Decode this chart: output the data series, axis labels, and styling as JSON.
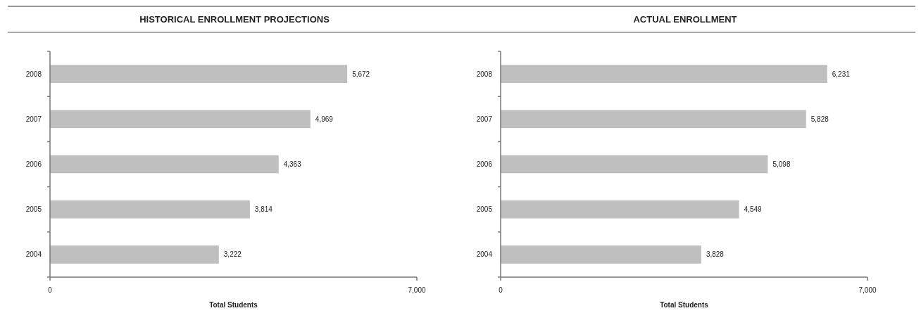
{
  "chart_data": [
    {
      "type": "bar",
      "orientation": "horizontal",
      "title": "HISTORICAL ENROLLMENT PROJECTIONS",
      "xlabel": "Total Students",
      "categories": [
        "2008",
        "2007",
        "2006",
        "2005",
        "2004"
      ],
      "values": [
        5672,
        4969,
        4363,
        3814,
        3222
      ],
      "color": "#bfbfbf",
      "xlim": [
        0,
        7000
      ],
      "xticks": [
        0,
        {
          "value": 7000,
          "label": "7,000"
        }
      ],
      "value_labels": [
        "5,672",
        "4,969",
        "4,363",
        "3,814",
        "3,222"
      ]
    },
    {
      "type": "bar",
      "orientation": "horizontal",
      "title": "ACTUAL ENROLLMENT",
      "xlabel": "Total Students",
      "categories": [
        "2008",
        "2007",
        "2006",
        "2005",
        "2004"
      ],
      "values": [
        6231,
        5828,
        5098,
        4549,
        3828
      ],
      "color": "#bfbfbf",
      "xlim": [
        0,
        7000
      ],
      "xticks": [
        0,
        {
          "value": 7000,
          "label": "7,000"
        }
      ],
      "value_labels": [
        "6,231",
        "5,828",
        "5,098",
        "4,549",
        "3,828"
      ]
    }
  ]
}
